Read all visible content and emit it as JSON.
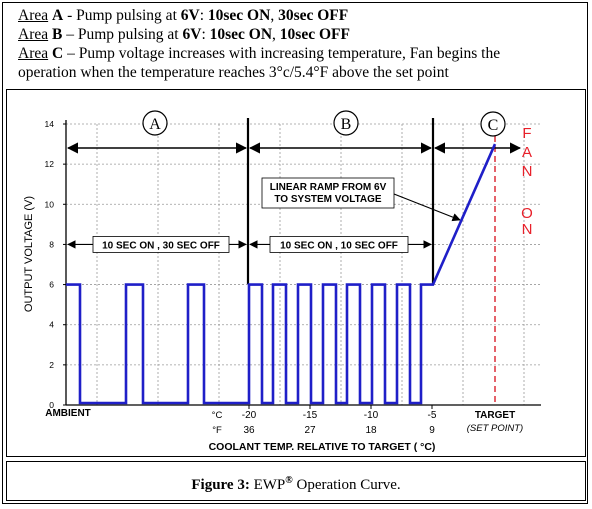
{
  "description": [
    {
      "area_word": "Area",
      "area_letter": "A",
      "text1": " - Pump pulsing at ",
      "v": "6V",
      "text2": ": ",
      "on_time": "10sec ON",
      "text3": ", ",
      "off_time": "30sec OFF"
    },
    {
      "area_word": "Area",
      "area_letter": "B",
      "text1": " – Pump pulsing at ",
      "v": "6V",
      "text2": ": ",
      "on_time": "10sec ON",
      "text3": ", ",
      "off_time": "10sec OFF"
    },
    {
      "area_word": "Area",
      "area_letter": "C",
      "text1": " – Pump voltage increases with increasing temperature, Fan begins the",
      "v": "",
      "text2": "",
      "on_time": "",
      "text3": "",
      "off_time": ""
    },
    {
      "area_word": "",
      "area_letter": "",
      "text1": "operation when the temperature reaches 3°c/5.4°F above the set point",
      "v": "",
      "text2": "",
      "on_time": "",
      "text3": "",
      "off_time": ""
    }
  ],
  "caption": {
    "prefix": "Figure 3:",
    "name": " EWP",
    "mark": "®",
    "suffix": " Operation Curve."
  },
  "chart_data": {
    "type": "line",
    "ylabel": "OUTPUT VOLTAGE (V)",
    "xlabel": "COOLANT TEMP. RELATIVE TO TARGET ( °C)",
    "ylim": [
      0,
      14
    ],
    "yticks": [
      0,
      2,
      4,
      6,
      8,
      10,
      12,
      14
    ],
    "grid": true,
    "x_start_label": "AMBIENT",
    "x_unit_c": "°C",
    "x_unit_f": "°F",
    "xticks_c": [
      "-20",
      "-15",
      "-10",
      "-5"
    ],
    "xticks_f": [
      "36",
      "27",
      "18",
      "9"
    ],
    "target_label": "TARGET",
    "target_sub": "(SET POINT)",
    "regions": [
      {
        "label": "A",
        "text": "10 SEC ON , 30 SEC OFF"
      },
      {
        "label": "B",
        "text": "10 SEC ON , 10 SEC OFF"
      },
      {
        "label": "C",
        "text": ""
      }
    ],
    "ramp_annotation": [
      "LINEAR RAMP FROM 6V",
      "TO SYSTEM VOLTAGE"
    ],
    "fan_on_letters": [
      "F",
      "A",
      "N",
      "O",
      "N"
    ],
    "pulse_voltage": 6,
    "ramp_end_voltage": 13,
    "colors": {
      "signal": "#1f1fc8",
      "fan": "#e8202a",
      "target_line": "#d81f2a",
      "axis": "#000000"
    }
  }
}
